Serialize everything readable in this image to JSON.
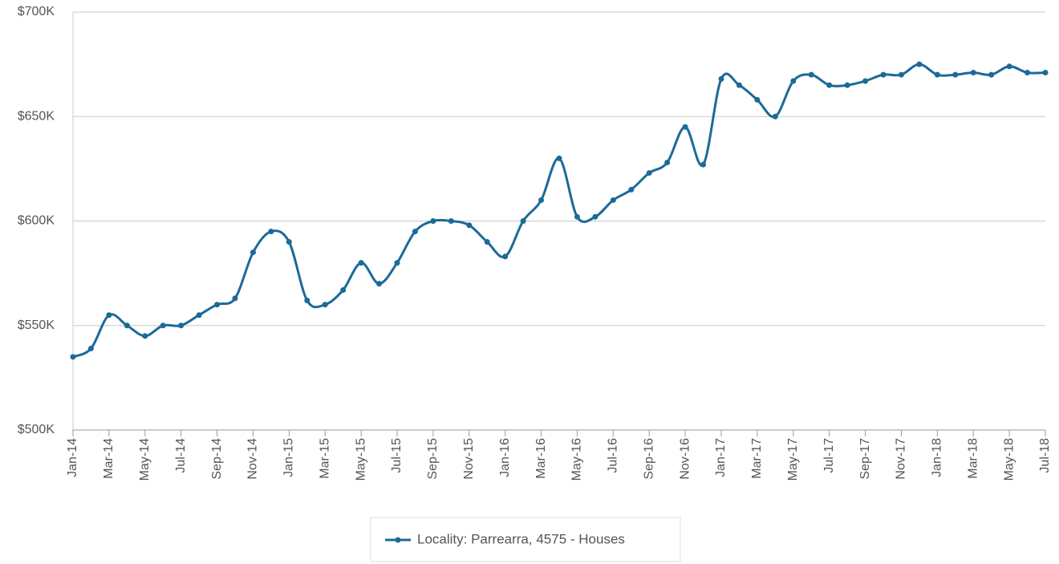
{
  "chart_data": {
    "type": "line",
    "categories": [
      "Jan-14",
      null,
      "Mar-14",
      null,
      "May-14",
      null,
      "Jul-14",
      null,
      "Sep-14",
      null,
      "Nov-14",
      null,
      "Jan-15",
      null,
      "Mar-15",
      null,
      "May-15",
      null,
      "Jul-15",
      null,
      "Sep-15",
      null,
      "Nov-15",
      null,
      "Jan-16",
      null,
      "Mar-16",
      null,
      "May-16",
      null,
      "Jul-16",
      null,
      "Sep-16",
      null,
      "Nov-16",
      null,
      "Jan-17",
      null,
      "Mar-17",
      null,
      "May-17",
      null,
      "Jul-17",
      null,
      "Sep-17",
      null,
      "Nov-17",
      null,
      "Jan-18",
      null,
      "Mar-18",
      null,
      "May-18",
      null,
      "Jul-18"
    ],
    "series": [
      {
        "name": "Locality: Parrearra, 4575 - Houses",
        "color": "#1b6a98",
        "values": [
          535000,
          539000,
          555000,
          550000,
          545000,
          550000,
          550000,
          555000,
          560000,
          563000,
          585000,
          595000,
          590000,
          562000,
          560000,
          567000,
          580000,
          570000,
          580000,
          595000,
          600000,
          600000,
          598000,
          590000,
          583000,
          600000,
          610000,
          630000,
          602000,
          602000,
          610000,
          615000,
          623000,
          628000,
          645000,
          627000,
          668000,
          665000,
          658000,
          650000,
          667000,
          670000,
          665000,
          665000,
          667000,
          670000,
          670000,
          675000,
          670000,
          670000,
          671000,
          670000,
          674000,
          671000,
          671000
        ]
      }
    ],
    "ylim": [
      500000,
      700000
    ],
    "yticks": [
      {
        "value": 500000,
        "label": "$500K"
      },
      {
        "value": 550000,
        "label": "$550K"
      },
      {
        "value": 600000,
        "label": "$600K"
      },
      {
        "value": 650000,
        "label": "$650K"
      },
      {
        "value": 700000,
        "label": "$700K"
      }
    ],
    "grid": true,
    "legend": "bottom"
  }
}
